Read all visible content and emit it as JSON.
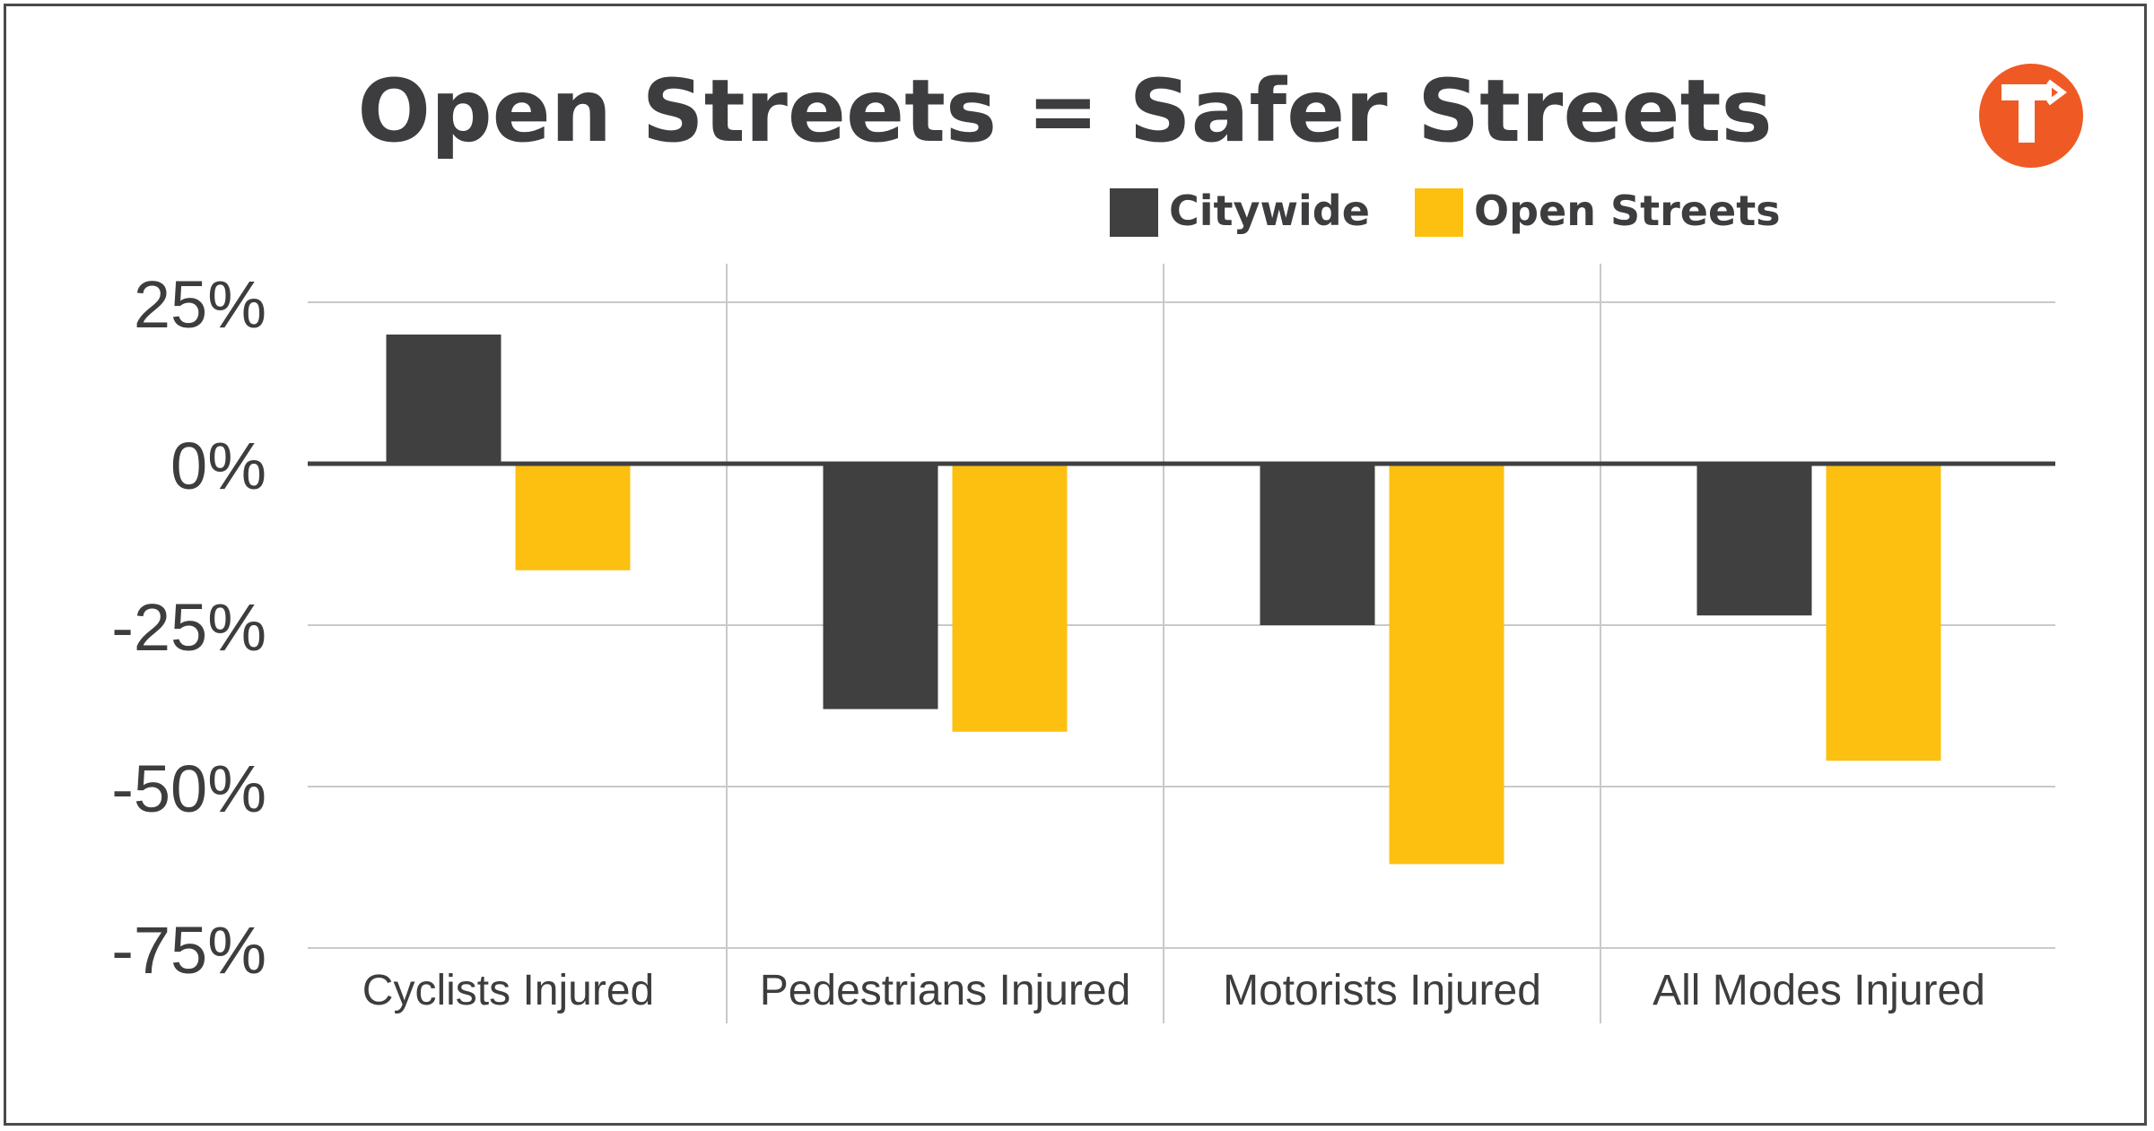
{
  "logo": {
    "icon": "turn-arrow-logo-icon",
    "color": "#ef5a24"
  },
  "chart_data": {
    "type": "bar",
    "title": "Open Streets = Safer Streets",
    "categories": [
      "Cyclists Injured",
      "Pedestrians Injured",
      "Motorists Injured",
      "All Modes Injured"
    ],
    "series": [
      {
        "name": "Citywide",
        "color": "#404041",
        "values": [
          20,
          -38,
          -25,
          -23.5
        ]
      },
      {
        "name": "Open Streets",
        "color": "#fdc010",
        "values": [
          -16.5,
          -41.5,
          -62,
          -46
        ]
      }
    ],
    "yticks": [
      {
        "value": 25,
        "label": "25%"
      },
      {
        "value": 0,
        "label": "0%"
      },
      {
        "value": -25,
        "label": "-25%"
      },
      {
        "value": -50,
        "label": "-50%"
      },
      {
        "value": -75,
        "label": "-75%"
      }
    ],
    "ylim": [
      -75,
      25
    ],
    "xlabel": "",
    "ylabel": "",
    "grid": true,
    "legend": "top-right"
  }
}
